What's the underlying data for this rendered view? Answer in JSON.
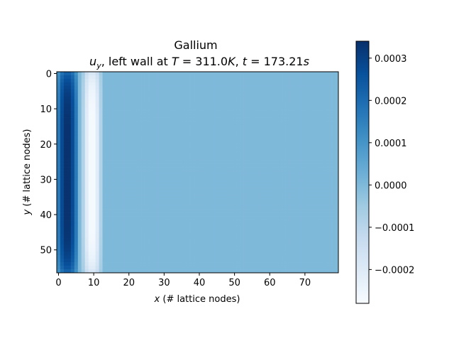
{
  "chart_data": {
    "type": "heatmap",
    "title_line1": "Gallium",
    "title_line2": {
      "prefix_var": "u",
      "prefix_sub": "y",
      "text_a": ", left wall at ",
      "T_var": "T",
      "T_value": " = 311.0",
      "T_unit": "K",
      "sep": ", ",
      "t_var": "t",
      "t_value": " = 173.21",
      "t_unit": "s"
    },
    "xlabel": {
      "var": "x",
      "text": " (# lattice nodes)"
    },
    "ylabel": {
      "var": "y",
      "text": " (# lattice nodes)"
    },
    "xlim": [
      -0.5,
      79.5
    ],
    "ylim": [
      56.5,
      -0.5
    ],
    "xticks": [
      0,
      10,
      20,
      30,
      40,
      50,
      60,
      70
    ],
    "yticks": [
      0,
      10,
      20,
      30,
      40,
      50
    ],
    "colorscale": "Blues",
    "colorscale_stops": [
      "#f7fbff",
      "#deebf7",
      "#c6dbef",
      "#9ecae1",
      "#6baed6",
      "#4292c6",
      "#2171b5",
      "#08519c",
      "#08306b"
    ],
    "vmin": -0.00028,
    "vmax": 0.00034,
    "background_value": 0.0,
    "colorbar_ticks": [
      0.0003,
      0.0002,
      0.0001,
      0.0,
      -0.0001,
      -0.0002
    ],
    "colorbar_tick_labels": [
      "0.0003",
      "0.0002",
      "0.0001",
      "0.0000",
      "−0.0001",
      "−0.0002"
    ],
    "grid_size": {
      "nx": 80,
      "ny": 57
    },
    "features": [
      {
        "name": "upward-flow-band",
        "x_center": 2.5,
        "x_halfwidth": 3.5,
        "y_range": [
          1,
          55
        ],
        "peak": 0.00034
      },
      {
        "name": "downward-flow-band",
        "x_center": 9.5,
        "x_halfwidth": 3.0,
        "y_range": [
          1,
          55
        ],
        "peak": -0.00028
      }
    ]
  }
}
